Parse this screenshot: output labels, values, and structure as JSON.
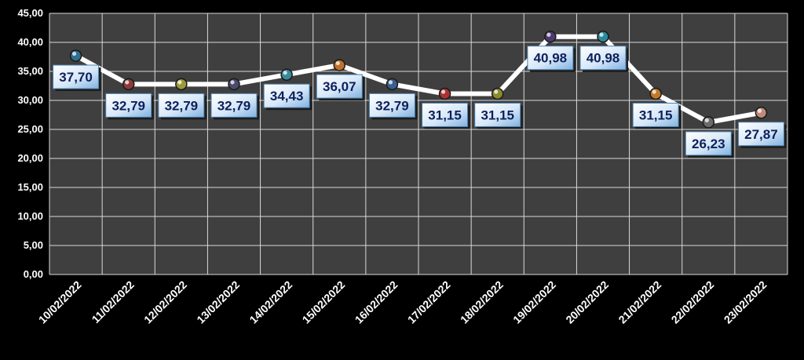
{
  "chart_data": {
    "type": "line",
    "title": "",
    "xlabel": "",
    "ylabel": "",
    "categories": [
      "10/02/2022",
      "11/02/2022",
      "12/02/2022",
      "13/02/2022",
      "14/02/2022",
      "15/02/2022",
      "16/02/2022",
      "17/02/2022",
      "18/02/2022",
      "19/02/2022",
      "20/02/2022",
      "21/02/2022",
      "22/02/2022",
      "23/02/2022"
    ],
    "values": [
      37.7,
      32.79,
      32.79,
      32.79,
      34.43,
      36.07,
      32.79,
      31.15,
      31.15,
      40.98,
      40.98,
      31.15,
      26.23,
      27.87
    ],
    "value_labels": [
      "37,70",
      "32,79",
      "32,79",
      "32,79",
      "34,43",
      "36,07",
      "32,79",
      "31,15",
      "31,15",
      "40,98",
      "40,98",
      "31,15",
      "26,23",
      "27,87"
    ],
    "ylim": [
      0,
      45
    ],
    "y_ticks": [
      "0,00",
      "5,00",
      "10,00",
      "15,00",
      "20,00",
      "25,00",
      "30,00",
      "35,00",
      "40,00",
      "45,00"
    ],
    "grid": true,
    "legend": "none",
    "colors": {
      "background": "#000000",
      "plot_area": "#3f3f3f",
      "gridline": "#d9d9d9",
      "line": "#ffffff",
      "label_box": "#cfe3f7",
      "label_text": "#0d1f5c",
      "axis_text": "#ffffff",
      "markers": [
        "#2e6e8e",
        "#8b3a3a",
        "#9a9a3a",
        "#4a4a6e",
        "#3a8a9a",
        "#c0702a",
        "#3a5e8e",
        "#a83232",
        "#8a8a2e",
        "#4a3a6e",
        "#2a8a9a",
        "#c07a2a",
        "#6a6a6a",
        "#c08a7a"
      ]
    }
  }
}
